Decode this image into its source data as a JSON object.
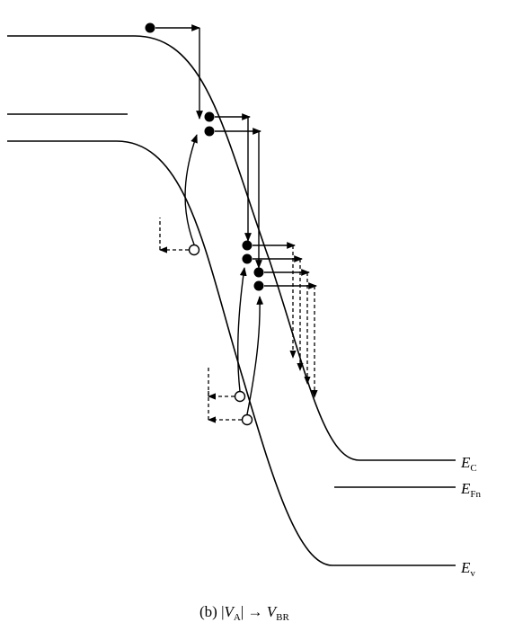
{
  "labels": {
    "ec": {
      "main": "E",
      "sub": "C"
    },
    "efn": {
      "main": "E",
      "sub": "Fn"
    },
    "ev": {
      "main": "E",
      "sub": "v"
    }
  },
  "caption": {
    "prefix": "(b)  |",
    "va_main": "V",
    "va_sub": "A",
    "mid": "|  → ",
    "vbr_main": "V",
    "vbr_sub": "BR"
  }
}
